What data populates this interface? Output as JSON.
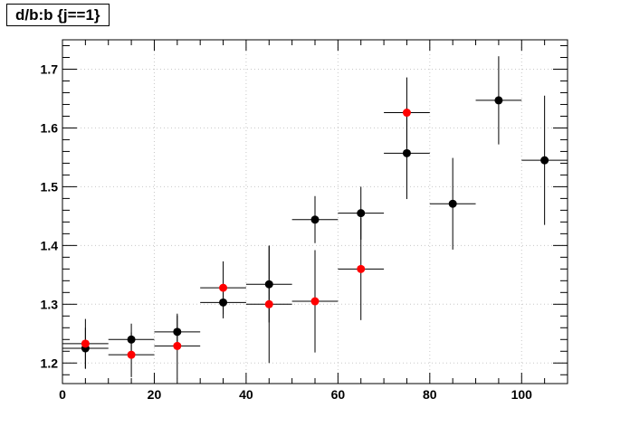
{
  "chart_data": {
    "type": "scatter",
    "title": "d/b:b {j==1}",
    "xlabel": "",
    "ylabel": "",
    "xlim": [
      0,
      110
    ],
    "ylim": [
      1.165,
      1.75
    ],
    "grid": true,
    "x_ticks": [
      0,
      20,
      40,
      60,
      80,
      100
    ],
    "y_ticks": [
      1.2,
      1.3,
      1.4,
      1.5,
      1.6,
      1.7
    ],
    "series": [
      {
        "color": "#000000",
        "points": [
          {
            "x": 5,
            "y": 1.225,
            "xerr": 5,
            "yerr": 0.035
          },
          {
            "x": 15,
            "y": 1.24,
            "xerr": 5,
            "yerr": 0.027
          },
          {
            "x": 25,
            "y": 1.253,
            "xerr": 5,
            "yerr": 0.028
          },
          {
            "x": 35,
            "y": 1.303,
            "xerr": 5,
            "yerr": 0.027
          },
          {
            "x": 45,
            "y": 1.334,
            "xerr": 5,
            "yerr": 0.065
          },
          {
            "x": 55,
            "y": 1.444,
            "xerr": 5,
            "yerr": 0.04
          },
          {
            "x": 65,
            "y": 1.455,
            "xerr": 5,
            "yerr": 0.045
          },
          {
            "x": 75,
            "y": 1.557,
            "xerr": 5,
            "yerr": 0.078
          },
          {
            "x": 85,
            "y": 1.471,
            "xerr": 5,
            "yerr": 0.078
          },
          {
            "x": 95,
            "y": 1.647,
            "xerr": 5,
            "yerr": 0.075
          },
          {
            "x": 105,
            "y": 1.545,
            "xerr": 5,
            "yerr": 0.11
          }
        ]
      },
      {
        "color": "#ff0000",
        "points": [
          {
            "x": 5,
            "y": 1.233,
            "xerr": 5,
            "yerr": 0.042
          },
          {
            "x": 15,
            "y": 1.214,
            "xerr": 5,
            "yerr": 0.038
          },
          {
            "x": 25,
            "y": 1.229,
            "xerr": 5,
            "yerr": 0.055
          },
          {
            "x": 35,
            "y": 1.328,
            "xerr": 5,
            "yerr": 0.045
          },
          {
            "x": 45,
            "y": 1.3,
            "xerr": 5,
            "yerr": 0.1
          },
          {
            "x": 55,
            "y": 1.305,
            "xerr": 5,
            "yerr": 0.087
          },
          {
            "x": 65,
            "y": 1.36,
            "xerr": 5,
            "yerr": 0.087
          },
          {
            "x": 75,
            "y": 1.626,
            "xerr": 5,
            "yerr": 0.06
          }
        ]
      }
    ]
  }
}
